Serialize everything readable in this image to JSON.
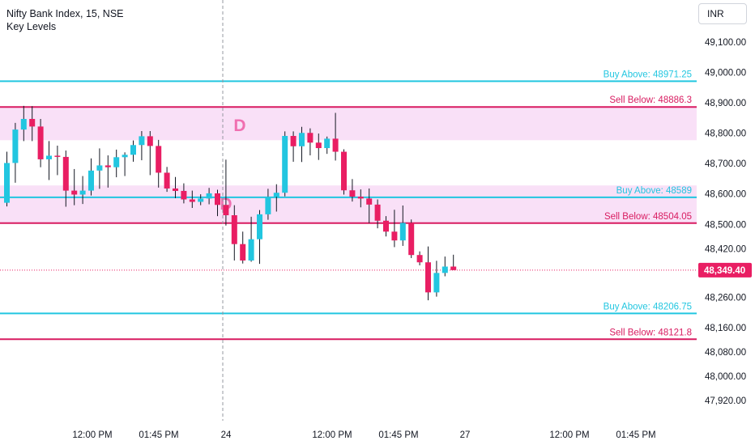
{
  "header": {
    "symbol_title": "Nifty Bank Index, 15, NSE",
    "indicator_title": "Key Levels",
    "currency": "INR"
  },
  "colors": {
    "up": "#22c6e0",
    "down": "#e91e63",
    "buy_line": "#22c6e0",
    "sell_line": "#d81b60",
    "zone_fill": "#f9e0f7",
    "price_badge": "#e91e63"
  },
  "chart_data": {
    "type": "candlestick",
    "title": "Nifty Bank Index, 15, NSE",
    "ylim": [
      47860,
      49180
    ],
    "y_ticks": [
      "49,100.00",
      "49,000.00",
      "48,900.00",
      "48,800.00",
      "48,700.00",
      "48,600.00",
      "48,500.00",
      "48,420.00",
      "48,260.00",
      "48,160.00",
      "48,080.00",
      "48,000.00",
      "47,920.00"
    ],
    "x_ticks": [
      "12:00 PM",
      "01:45 PM",
      "24",
      "12:00 PM",
      "01:45 PM",
      "27",
      "12:00 PM",
      "01:45 PM"
    ],
    "last_price": 48349.4,
    "last_price_label": "48,349.40",
    "zones": [
      {
        "letter": "D",
        "low": 48777,
        "high": 48886.3
      },
      {
        "letter": "D",
        "low": 48504.05,
        "high": 48628
      }
    ],
    "levels": [
      {
        "kind": "buy",
        "price": 48971.25,
        "label": "Buy Above: 48971.25"
      },
      {
        "kind": "sell",
        "price": 48886.3,
        "label": "Sell Below: 48886.3"
      },
      {
        "kind": "buy",
        "price": 48589,
        "label": "Buy Above: 48589"
      },
      {
        "kind": "sell",
        "price": 48504.05,
        "label": "Sell Below: 48504.05"
      },
      {
        "kind": "buy",
        "price": 48206.75,
        "label": "Buy Above: 48206.75"
      },
      {
        "kind": "sell",
        "price": 48121.8,
        "label": "Sell Below: 48121.8"
      }
    ],
    "candles": [
      [
        48571,
        48702,
        48559,
        48739
      ],
      [
        48702,
        48812,
        48637,
        48834
      ],
      [
        48812,
        48847,
        48774,
        48890
      ],
      [
        48847,
        48822,
        48774,
        48889
      ],
      [
        48822,
        48714,
        48688,
        48847
      ],
      [
        48714,
        48726,
        48646,
        48774
      ],
      [
        48726,
        48722,
        48662,
        48759
      ],
      [
        48722,
        48611,
        48558,
        48743
      ],
      [
        48611,
        48598,
        48563,
        48682
      ],
      [
        48598,
        48611,
        48567,
        48659
      ],
      [
        48611,
        48677,
        48595,
        48717
      ],
      [
        48677,
        48694,
        48617,
        48750
      ],
      [
        48694,
        48688,
        48621,
        48727
      ],
      [
        48688,
        48721,
        48655,
        48746
      ],
      [
        48721,
        48729,
        48659,
        48737
      ],
      [
        48729,
        48761,
        48706,
        48776
      ],
      [
        48761,
        48790,
        48711,
        48807
      ],
      [
        48790,
        48758,
        48662,
        48807
      ],
      [
        48758,
        48670,
        48621,
        48778
      ],
      [
        48670,
        48618,
        48607,
        48689
      ],
      [
        48618,
        48610,
        48586,
        48656
      ],
      [
        48610,
        48582,
        48569,
        48635
      ],
      [
        48582,
        48574,
        48554,
        48611
      ],
      [
        48574,
        48585,
        48563,
        48599
      ],
      [
        48585,
        48602,
        48566,
        48620
      ],
      [
        48602,
        48564,
        48527,
        48614
      ],
      [
        48564,
        48530,
        48496,
        48713
      ],
      [
        48530,
        48435,
        48381,
        48563
      ],
      [
        48435,
        48381,
        48371,
        48476
      ],
      [
        48381,
        48451,
        48377,
        48525
      ],
      [
        48451,
        48533,
        48370,
        48547
      ],
      [
        48533,
        48591,
        48515,
        48617
      ],
      [
        48591,
        48604,
        48542,
        48632
      ],
      [
        48604,
        48791,
        48592,
        48806
      ],
      [
        48791,
        48757,
        48706,
        48806
      ],
      [
        48757,
        48801,
        48705,
        48821
      ],
      [
        48801,
        48769,
        48727,
        48816
      ],
      [
        48769,
        48751,
        48712,
        48799
      ],
      [
        48751,
        48782,
        48732,
        48789
      ],
      [
        48782,
        48739,
        48710,
        48867
      ],
      [
        48739,
        48612,
        48598,
        48747
      ],
      [
        48612,
        48591,
        48575,
        48649
      ],
      [
        48591,
        48585,
        48556,
        48615
      ],
      [
        48585,
        48565,
        48504,
        48618
      ],
      [
        48565,
        48512,
        48487,
        48582
      ],
      [
        48512,
        48476,
        48460,
        48527
      ],
      [
        48476,
        48447,
        48425,
        48548
      ],
      [
        48447,
        48505,
        48429,
        48562
      ],
      [
        48505,
        48399,
        48389,
        48516
      ],
      [
        48399,
        48375,
        48365,
        48411
      ],
      [
        48375,
        48276,
        48250,
        48427
      ],
      [
        48276,
        48340,
        48262,
        48380
      ],
      [
        48340,
        48361,
        48329,
        48394
      ],
      [
        48361,
        48349.4,
        48349.4,
        48400
      ]
    ]
  }
}
